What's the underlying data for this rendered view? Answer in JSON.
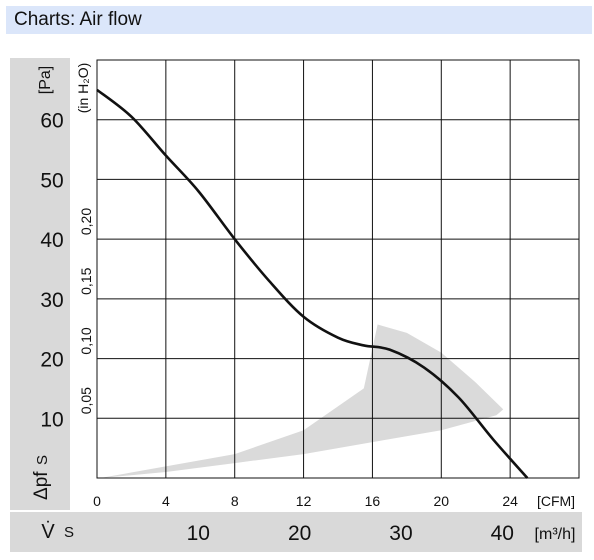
{
  "header": {
    "title": "Charts: Air flow"
  },
  "chart_data": {
    "type": "line",
    "title": "",
    "y_axis_primary": {
      "unit_label": "[Pa]",
      "ticks": [
        10,
        20,
        30,
        40,
        50,
        60
      ],
      "range": [
        0,
        70
      ]
    },
    "y_axis_secondary": {
      "unit_label": "(in H₂O)",
      "ticks": [
        "0,05",
        "0,10",
        "0,15",
        "0,20"
      ]
    },
    "x_axis_primary": {
      "unit_label": "[CFM]",
      "ticks": [
        0,
        4,
        8,
        12,
        16,
        20,
        24
      ],
      "range": [
        0,
        28
      ]
    },
    "x_axis_secondary": {
      "unit_label": "[m³/h]",
      "ticks": [
        10,
        20,
        30,
        40
      ]
    },
    "pressure_symbol": "Δpf",
    "pressure_suffix": "S",
    "flow_symbol": "V̇",
    "flow_suffix": "S",
    "series": [
      {
        "x": [
          0,
          2,
          4,
          5.9,
          8,
          10,
          12,
          14,
          15.5,
          17,
          19,
          21,
          23,
          25
        ],
        "y": [
          65,
          60.5,
          54,
          48,
          40,
          33,
          27,
          23.5,
          22.2,
          21.5,
          18.5,
          13.5,
          6.5,
          0
        ]
      }
    ],
    "operating_region": {
      "x": [
        0.2,
        8,
        12,
        15.5,
        16.3,
        18,
        20,
        22,
        23.6,
        23.2,
        20,
        16,
        12,
        8,
        4,
        0.2
      ],
      "y": [
        0,
        4,
        8,
        15,
        25.7,
        24.3,
        21,
        16,
        11.5,
        10.5,
        8,
        6,
        4,
        2.5,
        1,
        0
      ]
    },
    "grid": true
  }
}
